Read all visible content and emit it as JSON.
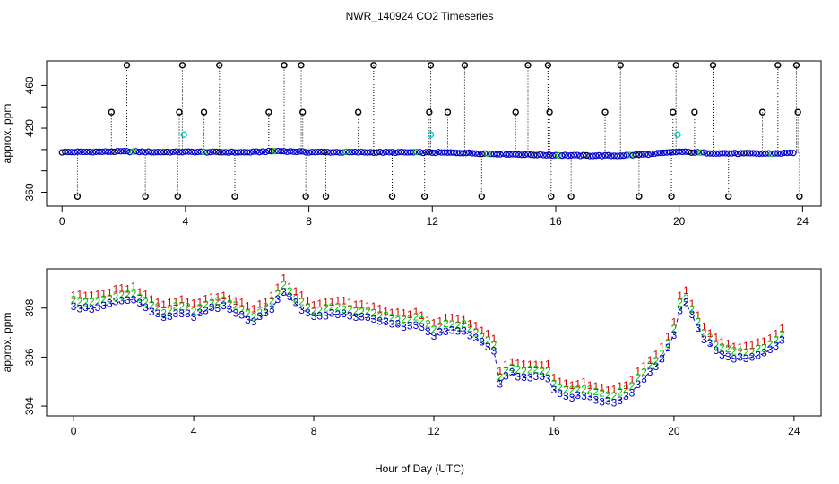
{
  "title": "NWR_140924  CO2 Timeseries",
  "colors": {
    "series1": "#d40000",
    "series2": "#00c800",
    "series3": "#0000cc",
    "top_points": "#0000cc",
    "top_flags": "#000000",
    "top_cyan": "#00c8c8",
    "top_orange": "#ff8c00"
  },
  "chart_data": [
    {
      "type": "scatter",
      "title": "",
      "xlabel": "",
      "ylabel": "approx. ppm",
      "xlim": [
        -0.5,
        24.6
      ],
      "ylim": [
        347,
        483
      ],
      "x_ticks": [
        0,
        4,
        8,
        12,
        16,
        20,
        24
      ],
      "x_tick_labels": [
        "0",
        "4",
        "8",
        "12",
        "16",
        "20",
        "24"
      ],
      "y_ticks": [
        360,
        380,
        400,
        420,
        440,
        460
      ],
      "y_tick_labels": [
        "360",
        "",
        "",
        "420",
        "",
        "460"
      ],
      "baseline_x": [
        0,
        1,
        2,
        3,
        4,
        5,
        6,
        7,
        8,
        9,
        10,
        11,
        12,
        13,
        14,
        15,
        16,
        17,
        18,
        19,
        20,
        21,
        22,
        23,
        23.7
      ],
      "baseline_y": [
        397.6,
        397.8,
        398.2,
        397.6,
        397.8,
        397.6,
        397.4,
        398.6,
        397.6,
        397.5,
        397.4,
        397.3,
        397.2,
        396.9,
        396.0,
        395.3,
        394.7,
        394.3,
        394.2,
        395.6,
        397.9,
        396.7,
        396.3,
        396.2,
        397.0
      ],
      "flagged_high_x": [
        1.6,
        2.1,
        3.8,
        3.9,
        4.6,
        5.1,
        6.7,
        7.2,
        7.75,
        7.8,
        9.6,
        10.1,
        11.9,
        11.95,
        12.5,
        13.05,
        14.7,
        15.1,
        15.75,
        15.8,
        17.6,
        18.1,
        19.8,
        19.9,
        20.5,
        21.1,
        22.7,
        23.2,
        23.8,
        23.85
      ],
      "flagged_high_y": [
        435,
        479,
        435,
        479,
        435,
        479,
        435,
        479,
        479,
        435,
        435,
        479,
        435,
        479,
        435,
        479,
        435,
        479,
        479,
        435,
        435,
        479,
        435,
        479,
        435,
        479,
        435,
        479,
        479,
        435
      ],
      "flagged_low_x": [
        0.5,
        2.7,
        3.75,
        5.6,
        7.9,
        8.55,
        10.7,
        11.75,
        13.6,
        15.85,
        16.5,
        18.7,
        19.75,
        21.6,
        23.9
      ],
      "flagged_low_y": [
        356,
        356,
        356,
        356,
        356,
        356,
        356,
        356,
        356,
        356,
        356,
        356,
        356,
        356,
        356
      ],
      "cyan_x": [
        3.95,
        11.95,
        19.95
      ],
      "cyan_y": [
        414,
        414,
        414
      ]
    },
    {
      "type": "scatter",
      "title": "",
      "xlabel": "Hour of Day (UTC)",
      "ylabel": "approx. ppm",
      "xlim": [
        -0.9,
        24.9
      ],
      "ylim": [
        393.6,
        399.6
      ],
      "x_ticks": [
        0,
        4,
        8,
        12,
        16,
        20,
        24
      ],
      "x_tick_labels": [
        "0",
        "4",
        "8",
        "12",
        "16",
        "20",
        "24"
      ],
      "y_ticks": [
        394,
        396,
        398
      ],
      "y_tick_labels": [
        "394",
        "396",
        "398"
      ],
      "series": [
        {
          "name": "1",
          "offset": 0.25
        },
        {
          "name": "2",
          "offset": 0.0
        },
        {
          "name": "3",
          "offset": -0.25
        }
      ],
      "anchor_x": [
        0,
        0.5,
        1.0,
        1.5,
        2.0,
        2.5,
        3.0,
        3.5,
        4.0,
        4.5,
        5.0,
        5.5,
        6.0,
        6.5,
        7.0,
        7.5,
        8.0,
        8.5,
        9.0,
        9.5,
        10.0,
        10.5,
        11.0,
        11.5,
        12.0,
        12.5,
        13.0,
        13.5,
        14.0,
        14.2,
        14.5,
        15.0,
        15.5,
        15.8,
        16.0,
        16.5,
        17.0,
        17.5,
        18.0,
        18.5,
        19.0,
        19.5,
        19.8,
        20.0,
        20.3,
        20.7,
        21.0,
        21.5,
        22.0,
        22.5,
        23.0,
        23.5,
        23.7
      ],
      "anchor_y": [
        398.3,
        398.2,
        398.35,
        398.5,
        398.6,
        398.2,
        397.85,
        398.1,
        397.9,
        398.2,
        398.3,
        398.0,
        397.7,
        398.1,
        398.9,
        398.3,
        397.9,
        398.0,
        398.0,
        397.9,
        397.8,
        397.6,
        397.5,
        397.6,
        397.1,
        397.4,
        397.3,
        396.9,
        396.5,
        395.2,
        395.6,
        395.4,
        395.5,
        395.4,
        394.9,
        394.6,
        394.7,
        394.5,
        394.4,
        394.7,
        395.4,
        396.0,
        396.6,
        397.2,
        398.7,
        397.7,
        397.0,
        396.4,
        396.2,
        396.2,
        396.4,
        396.8,
        397.1
      ]
    }
  ]
}
